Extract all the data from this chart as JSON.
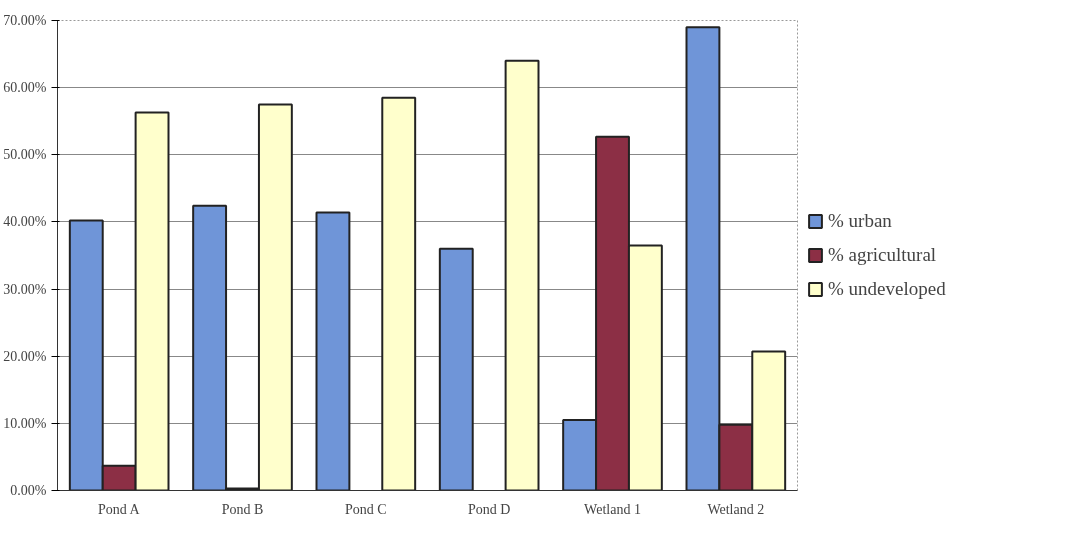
{
  "chart_data": {
    "type": "bar",
    "categories": [
      "Pond A",
      "Pond B",
      "Pond C",
      "Pond D",
      "Wetland 1",
      "Wetland 2"
    ],
    "series": [
      {
        "name": "% urban",
        "color": "#6f95d8",
        "values": [
          40.2,
          42.4,
          41.4,
          36.0,
          10.5,
          69.0
        ]
      },
      {
        "name": "% agricultural",
        "color": "#8c2f45",
        "values": [
          3.7,
          0.3,
          null,
          null,
          52.7,
          9.8
        ]
      },
      {
        "name": "% undeveloped",
        "color": "#ffffcc",
        "values": [
          56.3,
          57.5,
          58.5,
          64.0,
          36.5,
          20.7
        ]
      }
    ],
    "ylim": [
      0,
      70
    ],
    "yticks": [
      {
        "value": 0,
        "label": "0.00%"
      },
      {
        "value": 10,
        "label": "10.00%"
      },
      {
        "value": 20,
        "label": "20.00%"
      },
      {
        "value": 30,
        "label": "30.00%"
      },
      {
        "value": 40,
        "label": "40.00%"
      },
      {
        "value": 50,
        "label": "50.00%"
      },
      {
        "value": 60,
        "label": "60.00%"
      },
      {
        "value": 70,
        "label": "70.00%"
      }
    ],
    "grid": "y",
    "legend": "right"
  }
}
